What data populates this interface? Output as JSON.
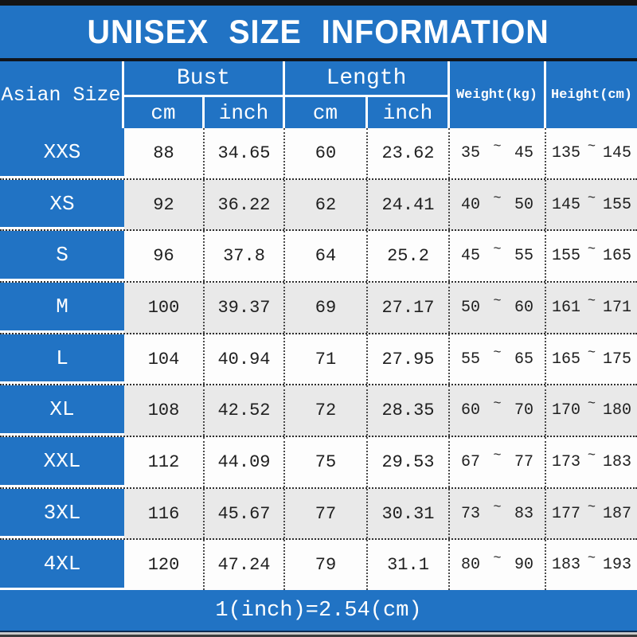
{
  "title": "UNISEX SIZE INFORMATION",
  "table": {
    "headers": {
      "asian_size": "Asian Size",
      "bust": "Bust",
      "length": "Length",
      "weight": "Weight(kg)",
      "height": "Height(cm)",
      "bust_cm": "cm",
      "bust_inch": "inch",
      "length_cm": "cm",
      "length_inch": "inch"
    },
    "range_separator": "~",
    "rows": [
      {
        "size": "XXS",
        "bust_cm": "88",
        "bust_inch": "34.65",
        "length_cm": "60",
        "length_inch": "23.62",
        "weight_min": "35",
        "weight_max": "45",
        "height_min": "135",
        "height_max": "145"
      },
      {
        "size": "XS",
        "bust_cm": "92",
        "bust_inch": "36.22",
        "length_cm": "62",
        "length_inch": "24.41",
        "weight_min": "40",
        "weight_max": "50",
        "height_min": "145",
        "height_max": "155"
      },
      {
        "size": "S",
        "bust_cm": "96",
        "bust_inch": "37.8",
        "length_cm": "64",
        "length_inch": "25.2",
        "weight_min": "45",
        "weight_max": "55",
        "height_min": "155",
        "height_max": "165"
      },
      {
        "size": "M",
        "bust_cm": "100",
        "bust_inch": "39.37",
        "length_cm": "69",
        "length_inch": "27.17",
        "weight_min": "50",
        "weight_max": "60",
        "height_min": "161",
        "height_max": "171"
      },
      {
        "size": "L",
        "bust_cm": "104",
        "bust_inch": "40.94",
        "length_cm": "71",
        "length_inch": "27.95",
        "weight_min": "55",
        "weight_max": "65",
        "height_min": "165",
        "height_max": "175"
      },
      {
        "size": "XL",
        "bust_cm": "108",
        "bust_inch": "42.52",
        "length_cm": "72",
        "length_inch": "28.35",
        "weight_min": "60",
        "weight_max": "70",
        "height_min": "170",
        "height_max": "180"
      },
      {
        "size": "XXL",
        "bust_cm": "112",
        "bust_inch": "44.09",
        "length_cm": "75",
        "length_inch": "29.53",
        "weight_min": "67",
        "weight_max": "77",
        "height_min": "173",
        "height_max": "183"
      },
      {
        "size": "3XL",
        "bust_cm": "116",
        "bust_inch": "45.67",
        "length_cm": "77",
        "length_inch": "30.31",
        "weight_min": "73",
        "weight_max": "83",
        "height_min": "177",
        "height_max": "187"
      },
      {
        "size": "4XL",
        "bust_cm": "120",
        "bust_inch": "47.24",
        "length_cm": "79",
        "length_inch": "31.1",
        "weight_min": "80",
        "weight_max": "90",
        "height_min": "183",
        "height_max": "193"
      }
    ]
  },
  "footer": {
    "note": "1(inch)=2.54(cm)"
  },
  "colors": {
    "primary_blue": "#2173c4",
    "alt_row_gray": "#e9e9e9",
    "top_bar_black": "#141414",
    "text_dark": "#1f1f1f",
    "text_white": "#ffffff"
  },
  "chart_data": {
    "type": "table",
    "title": "UNISEX SIZE INFORMATION",
    "column_groups": [
      {
        "label": "Asian Size",
        "subcolumns": []
      },
      {
        "label": "Bust",
        "subcolumns": [
          "cm",
          "inch"
        ]
      },
      {
        "label": "Length",
        "subcolumns": [
          "cm",
          "inch"
        ]
      },
      {
        "label": "Weight(kg)",
        "subcolumns": []
      },
      {
        "label": "Height(cm)",
        "subcolumns": []
      }
    ],
    "rows": [
      [
        "XXS",
        88,
        34.65,
        60,
        23.62,
        "35 ~ 45",
        "135 ~ 145"
      ],
      [
        "XS",
        92,
        36.22,
        62,
        24.41,
        "40 ~ 50",
        "145 ~ 155"
      ],
      [
        "S",
        96,
        37.8,
        64,
        25.2,
        "45 ~ 55",
        "155 ~ 165"
      ],
      [
        "M",
        100,
        39.37,
        69,
        27.17,
        "50 ~ 60",
        "161 ~ 171"
      ],
      [
        "L",
        104,
        40.94,
        71,
        27.95,
        "55 ~ 65",
        "165 ~ 175"
      ],
      [
        "XL",
        108,
        42.52,
        72,
        28.35,
        "60 ~ 70",
        "170 ~ 180"
      ],
      [
        "XXL",
        112,
        44.09,
        75,
        29.53,
        "67 ~ 77",
        "173 ~ 183"
      ],
      [
        "3XL",
        116,
        45.67,
        77,
        30.31,
        "73 ~ 83",
        "177 ~ 187"
      ],
      [
        "4XL",
        120,
        47.24,
        79,
        31.1,
        "80 ~ 90",
        "183 ~ 193"
      ]
    ],
    "footnote": "1(inch)=2.54(cm)"
  }
}
